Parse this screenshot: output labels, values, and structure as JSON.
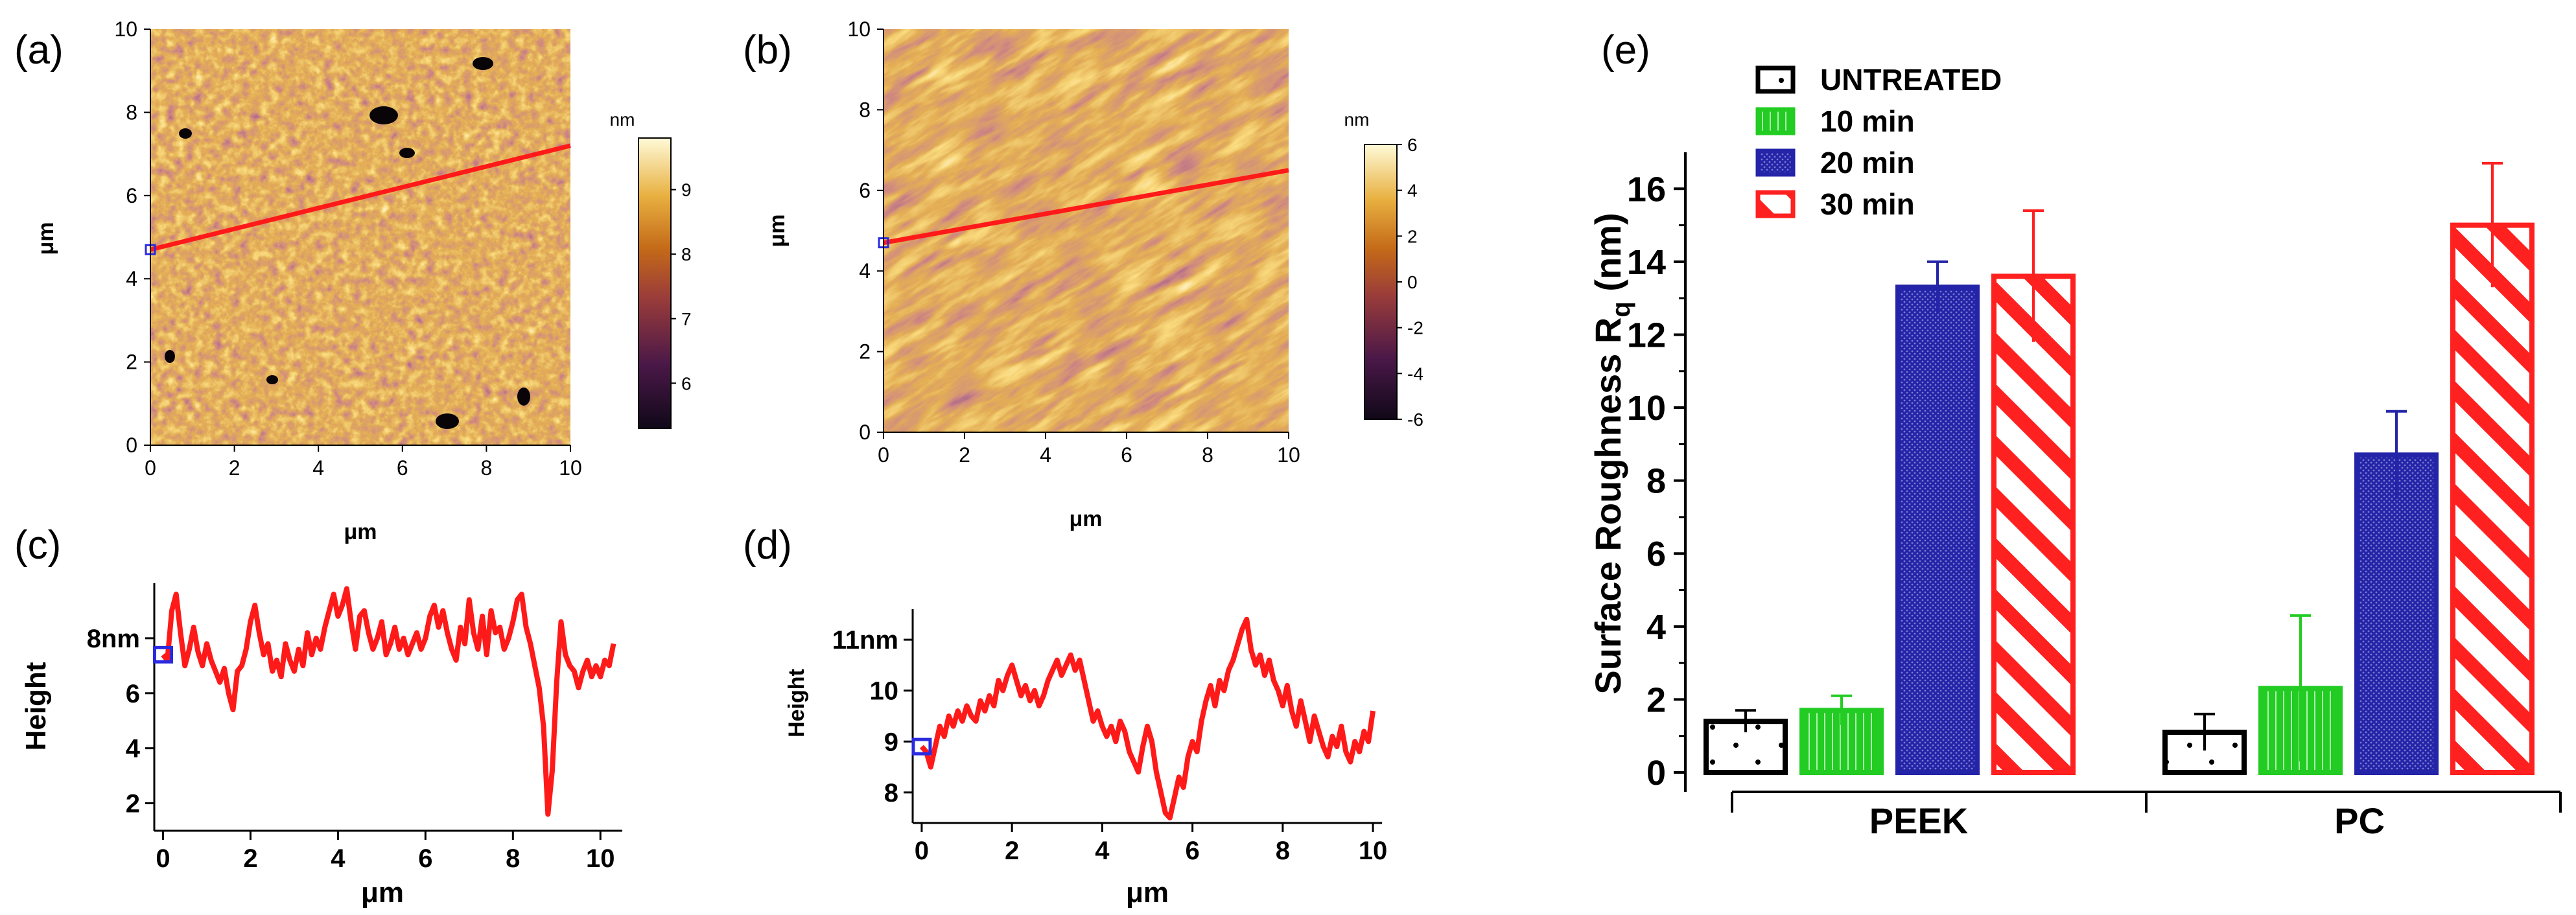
{
  "panels": {
    "a": {
      "label": "(a)",
      "xlabel": "μm",
      "ylabel": "μm",
      "xticks": [
        0,
        2,
        4,
        6,
        8,
        10
      ],
      "yticks": [
        0,
        2,
        4,
        6,
        8,
        10
      ],
      "xlim": [
        0,
        10
      ],
      "ylim": [
        0,
        10
      ],
      "colorbar_unit": "nm",
      "colorbar_ticks": [
        6,
        7,
        8,
        9
      ],
      "colorbar_range": [
        5.3,
        9.8
      ],
      "profile_line": {
        "x0": 0,
        "y0": 4.7,
        "x1": 10,
        "y1": 7.2
      }
    },
    "b": {
      "label": "(b)",
      "xlabel": "μm",
      "ylabel": "μm",
      "xticks": [
        0,
        2,
        4,
        6,
        8,
        10
      ],
      "yticks": [
        0,
        2,
        4,
        6,
        8,
        10
      ],
      "xlim": [
        0,
        10
      ],
      "ylim": [
        0,
        10
      ],
      "colorbar_unit": "nm",
      "colorbar_ticks": [
        6,
        4,
        2,
        0,
        -2,
        -4,
        -6
      ],
      "colorbar_range": [
        -6,
        6
      ],
      "profile_line": {
        "x0": 0,
        "y0": 4.7,
        "x1": 10,
        "y1": 6.5
      }
    },
    "c": {
      "label": "(c)",
      "xlabel": "μm",
      "ylabel": "Height",
      "xticks": [
        0,
        2,
        4,
        6,
        8,
        10
      ],
      "yticks": [
        "2",
        "4",
        "6",
        "8nm"
      ],
      "xlim": [
        -0.2,
        10.5
      ],
      "ylim": [
        1,
        10
      ]
    },
    "d": {
      "label": "(d)",
      "xlabel": "μm",
      "ylabel": "Height",
      "xticks": [
        0,
        2,
        4,
        6,
        8,
        10
      ],
      "yticks": [
        "8",
        "9",
        "10",
        "11nm"
      ],
      "xlim": [
        -0.2,
        10.2
      ],
      "ylim": [
        7.4,
        11.6
      ]
    }
  },
  "chart_data": {
    "type": "bar",
    "label": "(e)",
    "title": "",
    "xlabel": "",
    "ylabel": "Surface Roughness R",
    "ylabel_subscript": "q",
    "ylabel_unit": " (nm)",
    "categories": [
      "PEEK",
      "PC"
    ],
    "ylim": [
      0,
      17
    ],
    "yticks": [
      0,
      2,
      4,
      6,
      8,
      10,
      12,
      14,
      16
    ],
    "legend_position": "top-left",
    "series": [
      {
        "name": "UNTREATED",
        "values": [
          1.4,
          1.1
        ],
        "errors": [
          0.3,
          0.5
        ],
        "color": "#000000",
        "pattern": "dots"
      },
      {
        "name": "10 min",
        "values": [
          1.7,
          2.3
        ],
        "errors": [
          0.4,
          2.0
        ],
        "color": "#22cc22",
        "pattern": "vlines"
      },
      {
        "name": "20 min",
        "values": [
          13.3,
          8.7
        ],
        "errors": [
          0.7,
          1.2
        ],
        "color": "#2424a8",
        "pattern": "dense"
      },
      {
        "name": "30 min",
        "values": [
          13.6,
          15.0
        ],
        "errors": [
          1.8,
          1.7
        ],
        "color": "#ff2020",
        "pattern": "diag"
      }
    ]
  },
  "profiles": {
    "c": {
      "x": [
        0.0,
        0.1,
        0.2,
        0.3,
        0.4,
        0.5,
        0.6,
        0.7,
        0.8,
        0.9,
        1.0,
        1.1,
        1.2,
        1.3,
        1.4,
        1.5,
        1.6,
        1.7,
        1.8,
        1.9,
        2.0,
        2.1,
        2.2,
        2.3,
        2.4,
        2.5,
        2.6,
        2.7,
        2.8,
        2.9,
        3.0,
        3.1,
        3.2,
        3.3,
        3.4,
        3.5,
        3.6,
        3.7,
        3.8,
        3.9,
        4.0,
        4.1,
        4.2,
        4.3,
        4.4,
        4.5,
        4.6,
        4.7,
        4.8,
        4.9,
        5.0,
        5.1,
        5.2,
        5.3,
        5.4,
        5.5,
        5.6,
        5.7,
        5.8,
        5.9,
        6.0,
        6.1,
        6.2,
        6.3,
        6.4,
        6.5,
        6.6,
        6.7,
        6.8,
        6.9,
        7.0,
        7.1,
        7.2,
        7.3,
        7.4,
        7.5,
        7.6,
        7.7,
        7.8,
        7.9,
        8.0,
        8.1,
        8.2,
        8.3,
        8.4,
        8.5,
        8.6,
        8.7,
        8.8,
        8.9,
        9.0,
        9.1,
        9.2,
        9.3,
        9.4,
        9.5,
        9.6,
        9.7,
        9.8,
        9.9,
        10.0,
        10.1,
        10.2,
        10.3
      ],
      "y": [
        7.4,
        7.2,
        9.0,
        9.6,
        8.2,
        7.0,
        7.6,
        8.4,
        7.5,
        7.0,
        7.8,
        7.2,
        6.8,
        6.4,
        6.9,
        6.0,
        5.4,
        6.8,
        7.0,
        7.6,
        8.6,
        9.2,
        8.2,
        7.4,
        7.8,
        6.8,
        7.2,
        6.6,
        7.8,
        7.2,
        6.8,
        7.6,
        7.0,
        8.2,
        7.4,
        8.0,
        7.6,
        8.4,
        9.0,
        9.6,
        8.8,
        9.2,
        9.8,
        8.6,
        7.6,
        8.8,
        9.0,
        8.2,
        7.6,
        8.0,
        8.6,
        7.4,
        7.8,
        8.4,
        7.6,
        8.0,
        7.4,
        7.8,
        8.2,
        7.6,
        8.0,
        8.8,
        9.2,
        8.4,
        9.0,
        8.2,
        7.6,
        7.2,
        8.4,
        7.8,
        9.4,
        8.2,
        7.6,
        8.8,
        7.4,
        9.0,
        8.2,
        8.4,
        7.6,
        8.0,
        8.6,
        9.4,
        9.6,
        8.4,
        7.8,
        7.0,
        6.2,
        4.8,
        1.6,
        3.2,
        6.4,
        8.6,
        7.4,
        7.0,
        6.8,
        6.2,
        6.8,
        7.2,
        6.6,
        7.0,
        6.6,
        7.2,
        7.0,
        7.8
      ]
    },
    "d": {
      "x": [
        0.0,
        0.1,
        0.2,
        0.3,
        0.4,
        0.5,
        0.6,
        0.7,
        0.8,
        0.9,
        1.0,
        1.1,
        1.2,
        1.3,
        1.4,
        1.5,
        1.6,
        1.7,
        1.8,
        1.9,
        2.0,
        2.1,
        2.2,
        2.3,
        2.4,
        2.5,
        2.6,
        2.7,
        2.8,
        2.9,
        3.0,
        3.1,
        3.2,
        3.3,
        3.4,
        3.5,
        3.6,
        3.7,
        3.8,
        3.9,
        4.0,
        4.1,
        4.2,
        4.3,
        4.4,
        4.5,
        4.6,
        4.7,
        4.8,
        4.9,
        5.0,
        5.1,
        5.2,
        5.3,
        5.4,
        5.5,
        5.6,
        5.7,
        5.8,
        5.9,
        6.0,
        6.1,
        6.2,
        6.3,
        6.4,
        6.5,
        6.6,
        6.7,
        6.8,
        6.9,
        7.0,
        7.1,
        7.2,
        7.3,
        7.4,
        7.5,
        7.6,
        7.7,
        7.8,
        7.9,
        8.0,
        8.1,
        8.2,
        8.3,
        8.4,
        8.5,
        8.6,
        8.7,
        8.8,
        8.9,
        9.0,
        9.1,
        9.2,
        9.3,
        9.4,
        9.5,
        9.6,
        9.7,
        9.8,
        9.9,
        10.0
      ],
      "y": [
        8.9,
        8.8,
        8.5,
        8.9,
        9.3,
        9.1,
        9.5,
        9.3,
        9.6,
        9.4,
        9.7,
        9.5,
        9.4,
        9.8,
        9.6,
        9.9,
        9.7,
        10.2,
        10.0,
        10.3,
        10.5,
        10.2,
        9.9,
        10.1,
        9.8,
        10.0,
        9.7,
        9.9,
        10.2,
        10.4,
        10.6,
        10.3,
        10.5,
        10.7,
        10.4,
        10.6,
        10.2,
        9.8,
        9.4,
        9.6,
        9.3,
        9.1,
        9.3,
        9.0,
        9.4,
        9.2,
        8.8,
        8.6,
        8.4,
        8.9,
        9.3,
        9.0,
        8.4,
        8.0,
        7.6,
        7.5,
        7.9,
        8.3,
        8.1,
        8.7,
        9.0,
        8.8,
        9.4,
        9.8,
        10.1,
        9.7,
        10.2,
        10.0,
        10.4,
        10.6,
        10.9,
        11.2,
        11.4,
        10.8,
        10.5,
        10.7,
        10.3,
        10.6,
        10.2,
        10.0,
        9.7,
        10.1,
        9.6,
        9.3,
        9.8,
        9.4,
        9.0,
        9.5,
        9.2,
        8.9,
        8.7,
        9.1,
        8.9,
        9.3,
        8.8,
        8.6,
        9.0,
        8.8,
        9.2,
        9.0,
        9.6
      ]
    }
  },
  "colors": {
    "profile": "#ff1a1a",
    "marker": "#2a2ae0",
    "afm_low": "#100818",
    "afm_mid": "#c46a18",
    "afm_high": "#fffad8"
  }
}
